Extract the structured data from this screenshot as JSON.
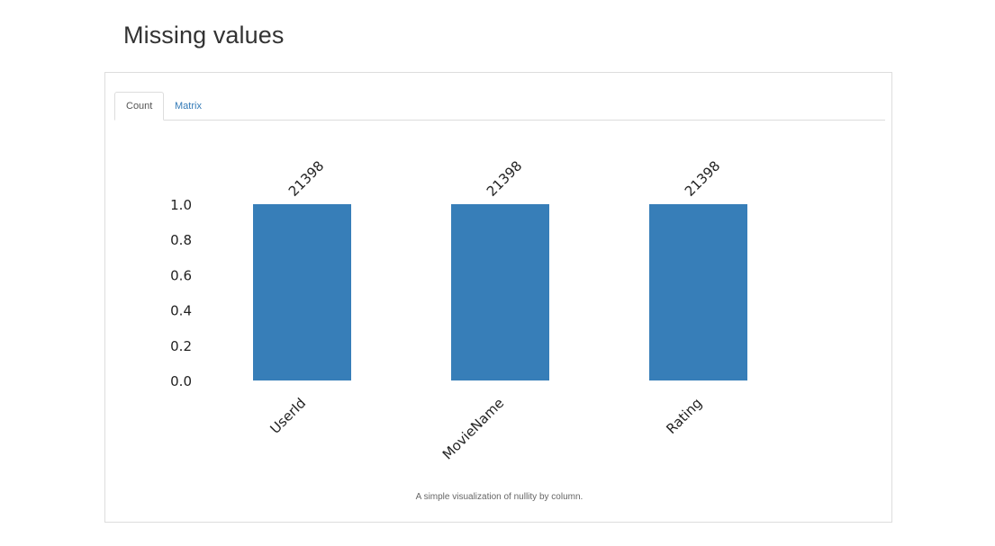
{
  "page": {
    "title": "Missing values"
  },
  "tabs": [
    {
      "label": "Count",
      "active": true
    },
    {
      "label": "Matrix",
      "active": false
    }
  ],
  "caption": "A simple visualization of nullity by column.",
  "colors": {
    "bar": "#377eb8",
    "link": "#337ab7"
  },
  "chart_data": {
    "type": "bar",
    "categories": [
      "UserId",
      "MovieName",
      "Rating"
    ],
    "values": [
      1.0,
      1.0,
      1.0
    ],
    "counts": [
      "21398",
      "21398",
      "21398"
    ],
    "yticks": [
      "0.0",
      "0.2",
      "0.4",
      "0.6",
      "0.8",
      "1.0"
    ],
    "ylim": [
      0,
      1
    ],
    "title": "",
    "xlabel": "",
    "ylabel": "",
    "grid": false,
    "legend": "none"
  }
}
